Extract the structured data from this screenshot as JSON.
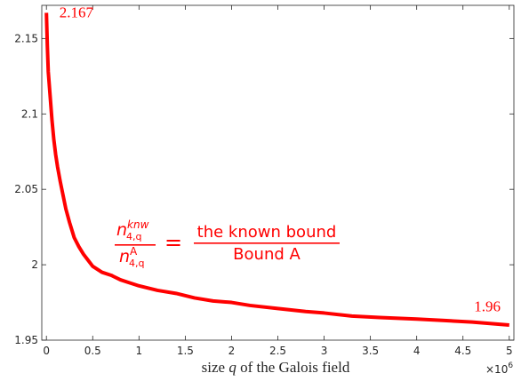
{
  "chart_data": {
    "type": "line",
    "title": "",
    "xlabel": "size q of the Galois field",
    "ylabel": "",
    "x_exponent_label": "×10",
    "x_exponent_power": "6",
    "xlim": [
      -0.05,
      5.05
    ],
    "ylim": [
      1.95,
      2.172
    ],
    "xticks": [
      0,
      0.5,
      1,
      1.5,
      2,
      2.5,
      3,
      3.5,
      4,
      4.5,
      5
    ],
    "xtick_labels": [
      "0",
      "0.5",
      "1",
      "1.5",
      "2",
      "2.5",
      "3",
      "3.5",
      "4",
      "4.5",
      "5"
    ],
    "yticks": [
      1.95,
      2,
      2.05,
      2.1,
      2.15
    ],
    "ytick_labels": [
      "1.95",
      "2",
      "2.05",
      "2.1",
      "2.15"
    ],
    "grid": false,
    "series": [
      {
        "color": "#ff0000",
        "x": [
          0.0,
          0.01,
          0.02,
          0.04,
          0.06,
          0.08,
          0.1,
          0.12,
          0.15,
          0.18,
          0.21,
          0.25,
          0.3,
          0.35,
          0.4,
          0.45,
          0.5,
          0.6,
          0.7,
          0.8,
          0.9,
          1.0,
          1.2,
          1.4,
          1.6,
          1.8,
          2.0,
          2.2,
          2.5,
          2.8,
          3.0,
          3.3,
          3.6,
          4.0,
          4.3,
          4.6,
          5.0
        ],
        "y": [
          2.167,
          2.145,
          2.128,
          2.112,
          2.096,
          2.083,
          2.073,
          2.065,
          2.055,
          2.046,
          2.037,
          2.028,
          2.018,
          2.012,
          2.007,
          2.003,
          1.999,
          1.995,
          1.993,
          1.99,
          1.988,
          1.986,
          1.983,
          1.981,
          1.978,
          1.976,
          1.975,
          1.973,
          1.971,
          1.969,
          1.968,
          1.966,
          1.965,
          1.964,
          1.963,
          1.962,
          1.96
        ]
      }
    ],
    "annotations": [
      {
        "text": "2.167",
        "x": 0.14,
        "y": 2.164
      },
      {
        "text": "1.96",
        "x": 4.62,
        "y": 1.969
      }
    ],
    "formula": {
      "lhs_num_base": "n",
      "lhs_num_sup": "knw",
      "lhs_num_sub": "4,q",
      "lhs_den_base": "n",
      "lhs_den_sup": "A",
      "lhs_den_sub": "4,q",
      "equals": "=",
      "rhs_num": "the known bound",
      "rhs_den": "Bound A"
    }
  }
}
